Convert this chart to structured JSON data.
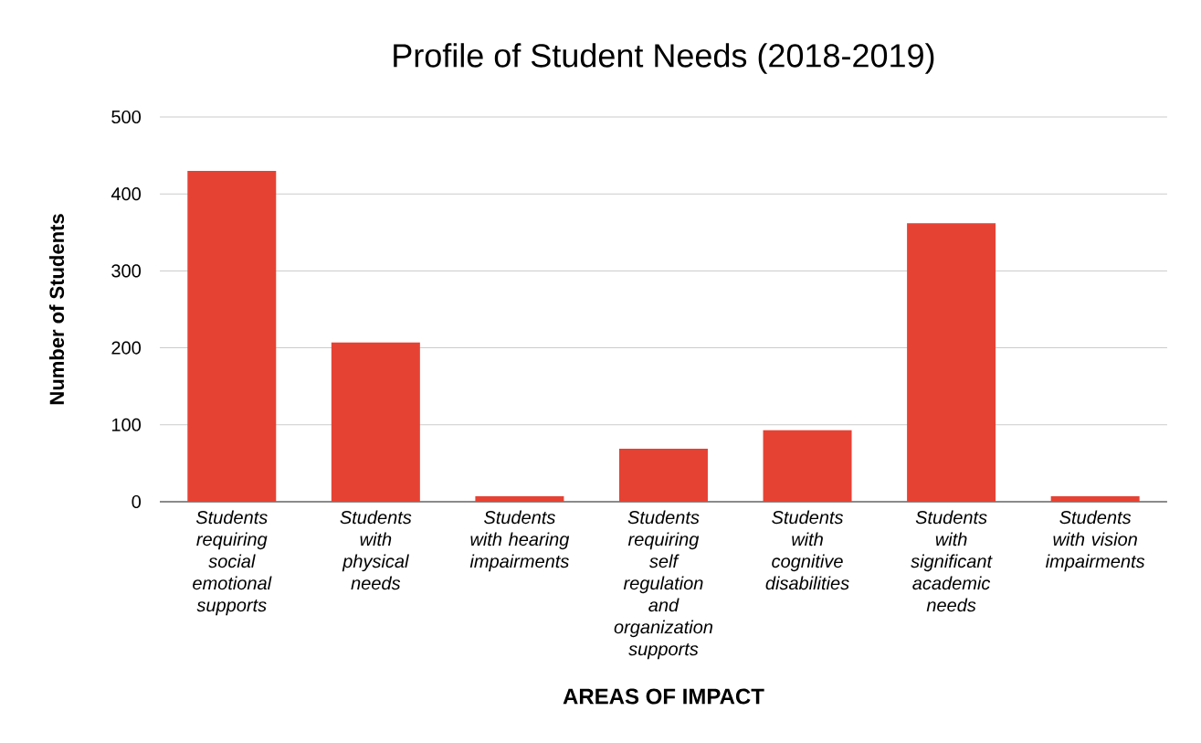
{
  "chart_data": {
    "type": "bar",
    "title": "Profile of Student Needs (2018-2019)",
    "xlabel": "AREAS OF IMPACT",
    "ylabel": "Number of Students",
    "categories": [
      "Students requiring social emotional supports",
      "Students with physical needs",
      "Students with hearing impairments",
      "Students requiring self regulation and organization supports",
      "Students with cognitive disabilities",
      "Students with significant academic needs",
      "Students with vision impairments"
    ],
    "values": [
      430,
      207,
      7,
      69,
      93,
      362,
      7
    ],
    "color": "#e64234",
    "ylim": [
      0,
      500
    ],
    "yticks": [
      0,
      100,
      200,
      300,
      400,
      500
    ],
    "grid": "y"
  }
}
